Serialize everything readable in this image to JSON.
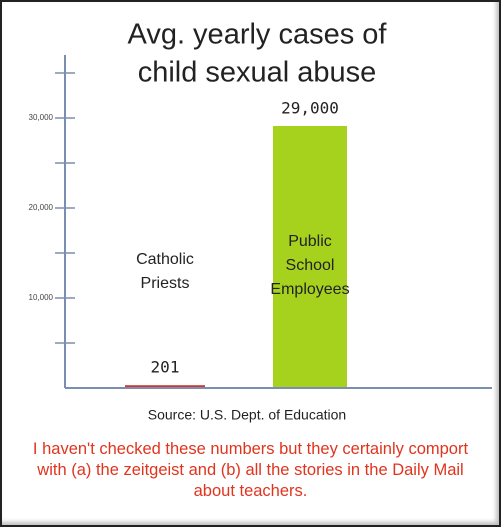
{
  "chart_data": {
    "type": "bar",
    "title": [
      "Avg. yearly cases of",
      "child sexual abuse"
    ],
    "categories": [
      "Catholic Priests",
      "Public School Employees"
    ],
    "values": [
      201,
      29000
    ],
    "value_labels": [
      "201",
      "29,000"
    ],
    "colors": [
      "#cc3a3a",
      "#a6d21e"
    ],
    "ylim": [
      0,
      37000
    ],
    "yticks": [
      {
        "value": 10000,
        "label": "10,000"
      },
      {
        "value": 20000,
        "label": "20,000"
      },
      {
        "value": 30000,
        "label": "30,000"
      }
    ],
    "minor_yticks": [
      5000,
      15000,
      25000,
      35000
    ],
    "source": "Source: U.S. Dept. of Education"
  },
  "caption": "I haven't checked these numbers but they certainly comport with (a) the zeitgeist and (b) all the stories in the Daily Mail about teachers."
}
